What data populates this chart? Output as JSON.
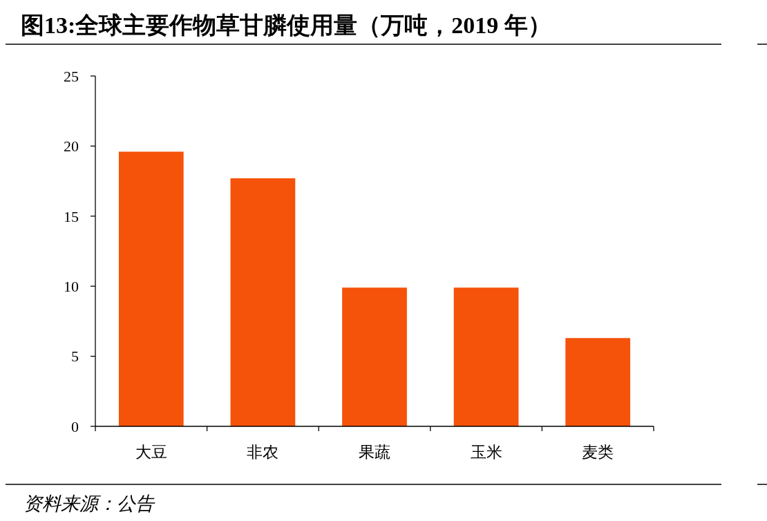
{
  "chart_data": {
    "type": "bar",
    "title": "图13:全球主要作物草甘膦使用量（万吨，2019 年）",
    "categories": [
      "大豆",
      "非农",
      "果蔬",
      "玉米",
      "麦类"
    ],
    "values": [
      19.6,
      17.7,
      9.9,
      9.9,
      6.3
    ],
    "color": "#f5520a",
    "ylim": [
      0,
      25
    ],
    "yticks": [
      0,
      5,
      10,
      15,
      20,
      25
    ],
    "grid": false,
    "annotations": [
      "资料来源：公告"
    ]
  }
}
